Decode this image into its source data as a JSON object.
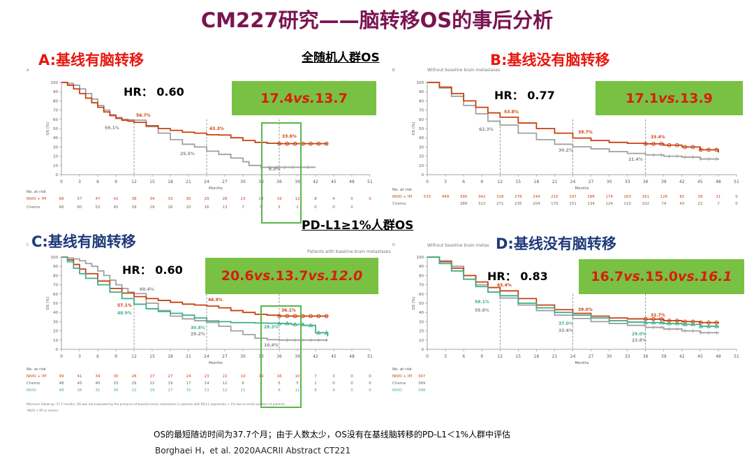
{
  "title": "CM227研究——脑转移OS的事后分析",
  "populations": {
    "all": "全随机人群OS",
    "pdl1": "PD-L1≥1%人群OS"
  },
  "panels": {
    "A": {
      "title": "A:基线有脑转移",
      "hr": "HR： 0.60",
      "box_main": "17.4 ",
      "box_vs": "vs.",
      "box_rest": "13.7",
      "box_vs2": "",
      "box_rest2": ""
    },
    "B": {
      "title": "B:基线没有脑转移",
      "hr": "HR： 0.77",
      "box_main": "17.1 ",
      "box_vs": "vs.",
      "box_rest": "13.9",
      "box_vs2": "",
      "box_rest2": ""
    },
    "C": {
      "title": "C:基线有脑转移",
      "hr": "HR： 0.60",
      "box_main": "20.6 ",
      "box_vs": "vs.",
      "box_rest": "13.7",
      "box_vs2": "vs.",
      "box_rest2": "12.0"
    },
    "D": {
      "title": "D:基线没有脑转移",
      "hr": "HR： 0.83",
      "box_main": "16.7 ",
      "box_vs": "vs.",
      "box_rest": "15.0 ",
      "box_vs2": "vs.",
      "box_rest2": "16.1"
    }
  },
  "footnote": "OS的最短随访时间为37.7个月；由于人数太少，OS没有在基线脑转移的PD-L1＜1%人群中评估",
  "citation": "Borghaei H，et al. 2020AACRII Abstract CT221",
  "colors": {
    "title": "#7a1450",
    "nivo_ipi": "#c8410f",
    "chemo": "#a0a0a0",
    "nivo": "#3fae8c",
    "box": "#79c142",
    "box_text": "#d81d0f"
  },
  "chart_data": [
    {
      "id": "A",
      "type": "line",
      "panel_label": "A",
      "xlabel": "Months",
      "ylabel": "OS (%)",
      "xticks": [
        0,
        3,
        6,
        9,
        12,
        15,
        18,
        21,
        24,
        27,
        30,
        33,
        36,
        39,
        42,
        45,
        48,
        51
      ],
      "yticks": [
        0,
        10,
        20,
        30,
        40,
        50,
        60,
        70,
        80,
        90,
        100
      ],
      "xlim": [
        0,
        51
      ],
      "ylim": [
        0,
        100
      ],
      "series": [
        {
          "key": "nivo_ipi",
          "color": "#c8410f",
          "x": [
            0,
            1,
            2,
            3,
            4,
            5,
            6,
            7,
            8,
            9,
            10,
            11,
            12,
            14,
            16,
            18,
            20,
            22,
            24,
            26,
            28,
            30,
            32,
            34,
            36,
            38,
            40,
            42,
            44
          ],
          "y": [
            100,
            97,
            93,
            88,
            83,
            78,
            73,
            68,
            64,
            61,
            59,
            58,
            56.7,
            53,
            50,
            48,
            46,
            45,
            43.3,
            43,
            40,
            37,
            35,
            34,
            33.6,
            33.6,
            33.6,
            33.6,
            33.6
          ]
        },
        {
          "key": "chemo",
          "color": "#a0a0a0",
          "x": [
            0,
            1,
            2,
            3,
            4,
            5,
            6,
            7,
            8,
            9,
            10,
            11,
            12,
            14,
            16,
            18,
            20,
            22,
            24,
            26,
            28,
            30,
            31,
            33,
            36,
            38,
            40,
            42
          ],
          "y": [
            100,
            99,
            97,
            93,
            88,
            82,
            75,
            70,
            65,
            62,
            60,
            59.5,
            59.1,
            52,
            45,
            38,
            33,
            30,
            25.5,
            22,
            18,
            14,
            10,
            8,
            8,
            8,
            8,
            8
          ]
        }
      ],
      "annotations": [
        "59.1%",
        "56.7%",
        "43.3%",
        "25.5%",
        "33.6%",
        "8.0%"
      ],
      "risk_header": "No. at risk",
      "risk_table": [
        {
          "label": "NIVO + IPI",
          "color": "#c8410f",
          "values": [
            "68",
            "57",
            "47",
            "42",
            "38",
            "34",
            "33",
            "30",
            "29",
            "28",
            "23",
            "23",
            "19",
            "12",
            "8",
            "4",
            "0",
            "0"
          ]
        },
        {
          "label": "Chemo",
          "color": "#666666",
          "values": [
            "66",
            "60",
            "52",
            "45",
            "39",
            "29",
            "26",
            "20",
            "16",
            "13",
            "7",
            "5",
            "5",
            "1",
            "0",
            "0",
            "0",
            ""
          ]
        }
      ]
    },
    {
      "id": "B",
      "type": "line",
      "panel_label": "B",
      "subtitle": "Without baseline brain metastases",
      "xlabel": "Months",
      "ylabel": "OS (%)",
      "xticks": [
        0,
        3,
        6,
        9,
        12,
        15,
        18,
        21,
        24,
        27,
        30,
        33,
        36,
        39,
        42,
        45,
        48,
        51
      ],
      "yticks": [
        0,
        10,
        20,
        30,
        40,
        50,
        60,
        70,
        80,
        90,
        100
      ],
      "xlim": [
        0,
        51
      ],
      "ylim": [
        0,
        100
      ],
      "series": [
        {
          "key": "nivo_ipi",
          "color": "#c8410f",
          "x": [
            0,
            2,
            4,
            6,
            8,
            10,
            12,
            15,
            18,
            21,
            24,
            27,
            30,
            33,
            36,
            39,
            42,
            45,
            48
          ],
          "y": [
            100,
            95,
            88,
            80,
            73,
            67,
            62.3,
            56,
            50,
            45,
            39.7,
            37,
            35,
            34,
            33.4,
            32,
            30,
            27,
            24
          ]
        },
        {
          "key": "chemo",
          "color": "#a0a0a0",
          "x": [
            0,
            2,
            4,
            6,
            8,
            10,
            12,
            15,
            18,
            21,
            24,
            27,
            30,
            33,
            36,
            39,
            42,
            45,
            48
          ],
          "y": [
            100,
            94,
            85,
            75,
            66,
            58,
            53.8,
            45,
            38,
            33,
            30.2,
            28,
            25,
            23,
            21.4,
            20,
            19,
            17,
            16
          ]
        }
      ],
      "annotations": [
        "62.3%",
        "53.8%",
        "39.7%",
        "30.2%",
        "33.4%",
        "21.4%"
      ],
      "risk_header": "No. at risk",
      "risk_table": [
        {
          "label": "NIVO + IPI",
          "color": "#c8410f",
          "values": [
            "515",
            "449",
            "390",
            "342",
            "316",
            "278",
            "244",
            "215",
            "197",
            "186",
            "174",
            "163",
            "161",
            "128",
            "82",
            "39",
            "11",
            "0"
          ]
        },
        {
          "label": "Chemo",
          "color": "#666666",
          "values": [
            "",
            "",
            "389",
            "312",
            "271",
            "235",
            "204",
            "170",
            "151",
            "134",
            "124",
            "110",
            "102",
            "74",
            "43",
            "22",
            "7",
            "0"
          ]
        }
      ]
    },
    {
      "id": "C",
      "type": "line",
      "panel_label": "C",
      "subtitle": "Patients with baseline brain metastases",
      "xlabel": "Months",
      "ylabel": "OS (%)",
      "xticks": [
        0,
        3,
        6,
        9,
        12,
        15,
        18,
        21,
        24,
        27,
        30,
        33,
        36,
        39,
        42,
        45,
        48,
        51
      ],
      "yticks": [
        0,
        10,
        20,
        30,
        40,
        50,
        60,
        70,
        80,
        90,
        100
      ],
      "xlim": [
        0,
        51
      ],
      "ylim": [
        0,
        100
      ],
      "series": [
        {
          "key": "nivo_ipi",
          "color": "#c8410f",
          "x": [
            0,
            1,
            2,
            3,
            4,
            6,
            8,
            10,
            12,
            14,
            16,
            18,
            20,
            22,
            24,
            26,
            28,
            30,
            32,
            34,
            36,
            38,
            40,
            42,
            44
          ],
          "y": [
            100,
            97,
            92,
            87,
            82,
            74,
            66,
            61,
            57.1,
            55,
            53,
            51,
            49,
            48,
            46.9,
            45,
            42,
            40,
            38,
            37,
            36.1,
            36,
            36,
            36,
            36
          ]
        },
        {
          "key": "chemo",
          "color": "#a0a0a0",
          "x": [
            0,
            1,
            2,
            3,
            4,
            5,
            6,
            7,
            8,
            9,
            10,
            11,
            12,
            14,
            16,
            18,
            20,
            22,
            24,
            26,
            28,
            30,
            32,
            34,
            36,
            38,
            40,
            42,
            44
          ],
          "y": [
            100,
            99,
            98,
            96,
            93,
            90,
            85,
            80,
            75,
            70,
            66,
            62,
            60.4,
            50,
            42,
            36,
            33,
            31,
            29.2,
            25,
            20,
            16,
            12,
            10.4,
            10,
            10,
            10,
            10,
            10
          ]
        },
        {
          "key": "nivo",
          "color": "#3fae8c",
          "x": [
            0,
            1,
            2,
            3,
            4,
            6,
            8,
            10,
            12,
            14,
            16,
            18,
            20,
            22,
            24,
            26,
            28,
            30,
            32,
            34,
            36,
            38,
            40,
            42,
            44
          ],
          "y": [
            100,
            95,
            88,
            82,
            77,
            70,
            62,
            55,
            48.9,
            44,
            41,
            39,
            37,
            34,
            30.8,
            30,
            29,
            29,
            28.5,
            28.3,
            28,
            27,
            26,
            18,
            14
          ]
        }
      ],
      "annotations": [
        "57.1%",
        "48.9%",
        "60.4%",
        "46.9%",
        "30.8%",
        "29.2%",
        "36.1%",
        "28.3%",
        "10.4%"
      ],
      "risk_header": "No. at risk",
      "risk_table": [
        {
          "label": "NIVO + IPI",
          "color": "#c8410f",
          "values": [
            "49",
            "41",
            "34",
            "30",
            "28",
            "27",
            "27",
            "24",
            "23",
            "22",
            "19",
            "19",
            "16",
            "10",
            "7",
            "3",
            "0",
            "0"
          ]
        },
        {
          "label": "Chemo",
          "color": "#666666",
          "values": [
            "48",
            "45",
            "40",
            "33",
            "29",
            "22",
            "19",
            "17",
            "14",
            "12",
            "6",
            "6",
            "5",
            "5",
            "1",
            "0",
            "0",
            "0"
          ]
        },
        {
          "label": "NIVO",
          "color": "#3fae8c",
          "values": [
            "48",
            "36",
            "31",
            "30",
            "22",
            "19",
            "17",
            "15",
            "13",
            "12",
            "11",
            "8",
            "6",
            "11",
            "8",
            "4",
            "0",
            "0"
          ]
        }
      ],
      "foot_notes": [
        "Minimum follow-up: 37.7 months; OS was not evaluated by the presence of baseline brain metastases in patients with PD-L1 expression < 1% due to small numbers of patients.",
        "ᵃNIVO + IPI vs chemo."
      ]
    },
    {
      "id": "D",
      "type": "line",
      "panel_label": "D",
      "subtitle": "Without baseline brain metas",
      "xlabel": "Months",
      "ylabel": "OS (%)",
      "xticks": [
        0,
        3,
        6,
        9,
        12,
        15,
        18,
        21,
        24,
        27,
        30,
        33,
        36,
        39,
        42,
        45,
        48,
        51
      ],
      "yticks": [
        0,
        10,
        20,
        30,
        40,
        50,
        60,
        70,
        80,
        90,
        100
      ],
      "xlim": [
        0,
        51
      ],
      "ylim": [
        0,
        100
      ],
      "series": [
        {
          "key": "nivo_ipi",
          "color": "#c8410f",
          "x": [
            0,
            2,
            4,
            6,
            8,
            10,
            12,
            15,
            18,
            21,
            24,
            27,
            30,
            33,
            36,
            39,
            42,
            45,
            48
          ],
          "y": [
            100,
            95,
            88,
            80,
            73,
            67,
            63.4,
            55,
            48,
            43,
            39,
            36,
            34,
            33,
            32.7,
            31,
            30,
            29,
            28
          ]
        },
        {
          "key": "chemo",
          "color": "#a0a0a0",
          "x": [
            0,
            2,
            4,
            6,
            8,
            10,
            12,
            15,
            18,
            21,
            24,
            27,
            30,
            33,
            36,
            39,
            42,
            45,
            48
          ],
          "y": [
            100,
            96,
            90,
            80,
            70,
            62,
            55.6,
            48,
            42,
            37,
            33.4,
            30,
            28,
            26,
            23.8,
            22,
            20,
            18,
            17
          ]
        },
        {
          "key": "nivo",
          "color": "#3fae8c",
          "x": [
            0,
            2,
            4,
            6,
            8,
            10,
            12,
            15,
            18,
            21,
            24,
            27,
            30,
            33,
            36,
            39,
            42,
            45,
            48
          ],
          "y": [
            100,
            93,
            85,
            76,
            68,
            62,
            58.1,
            50,
            45,
            40,
            37,
            34,
            31,
            29.5,
            29,
            28,
            27,
            25,
            24
          ]
        }
      ],
      "annotations": [
        "63.4%",
        "58.1%",
        "55.6%",
        "39.0%",
        "37.0%",
        "33.4%",
        "32.7%",
        "29.0%",
        "23.8%"
      ],
      "risk_header": "No. at risk",
      "risk_table": [
        {
          "label": "NIVO + IPI",
          "color": "#c8410f",
          "values": [
            "347"
          ]
        },
        {
          "label": "Chemo",
          "color": "#666666",
          "values": [
            "349"
          ]
        },
        {
          "label": "NIVO",
          "color": "#3fae8c",
          "values": [
            "348"
          ]
        }
      ]
    }
  ]
}
